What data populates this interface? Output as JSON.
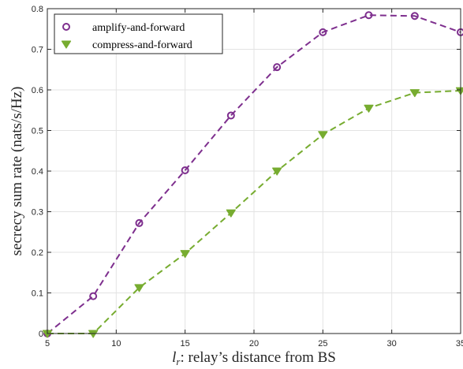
{
  "chart_data": {
    "type": "line",
    "xlabel_symbol": "l",
    "xlabel_subscript": "r",
    "xlabel_text": ": relay’s distance from BS",
    "ylabel": "secrecy sum rate (nats/s/Hz)",
    "xlim": [
      5,
      35
    ],
    "ylim": [
      0,
      0.8
    ],
    "xticks": [
      5,
      10,
      15,
      20,
      25,
      30,
      35
    ],
    "yticks": [
      0,
      0.1,
      0.2,
      0.3,
      0.4,
      0.5,
      0.6,
      0.7,
      0.8
    ],
    "grid": true,
    "legend_position": "top-left",
    "colors": {
      "af": "#7e2f8e",
      "cf": "#77ac30"
    },
    "series": [
      {
        "name": "amplify-and-forward",
        "marker": "circle",
        "x": [
          5,
          8.33,
          11.67,
          15,
          18.33,
          21.67,
          25,
          28.33,
          31.67,
          35
        ],
        "values": [
          0.0,
          0.092,
          0.272,
          0.402,
          0.537,
          0.656,
          0.742,
          0.784,
          0.782,
          0.742
        ]
      },
      {
        "name": "compress-and-forward",
        "marker": "triangle-down",
        "x": [
          5,
          8.33,
          11.67,
          15,
          18.33,
          21.67,
          25,
          28.33,
          31.67,
          35
        ],
        "values": [
          0.0,
          0.0,
          0.113,
          0.197,
          0.297,
          0.4,
          0.49,
          0.555,
          0.593,
          0.598
        ]
      }
    ]
  }
}
